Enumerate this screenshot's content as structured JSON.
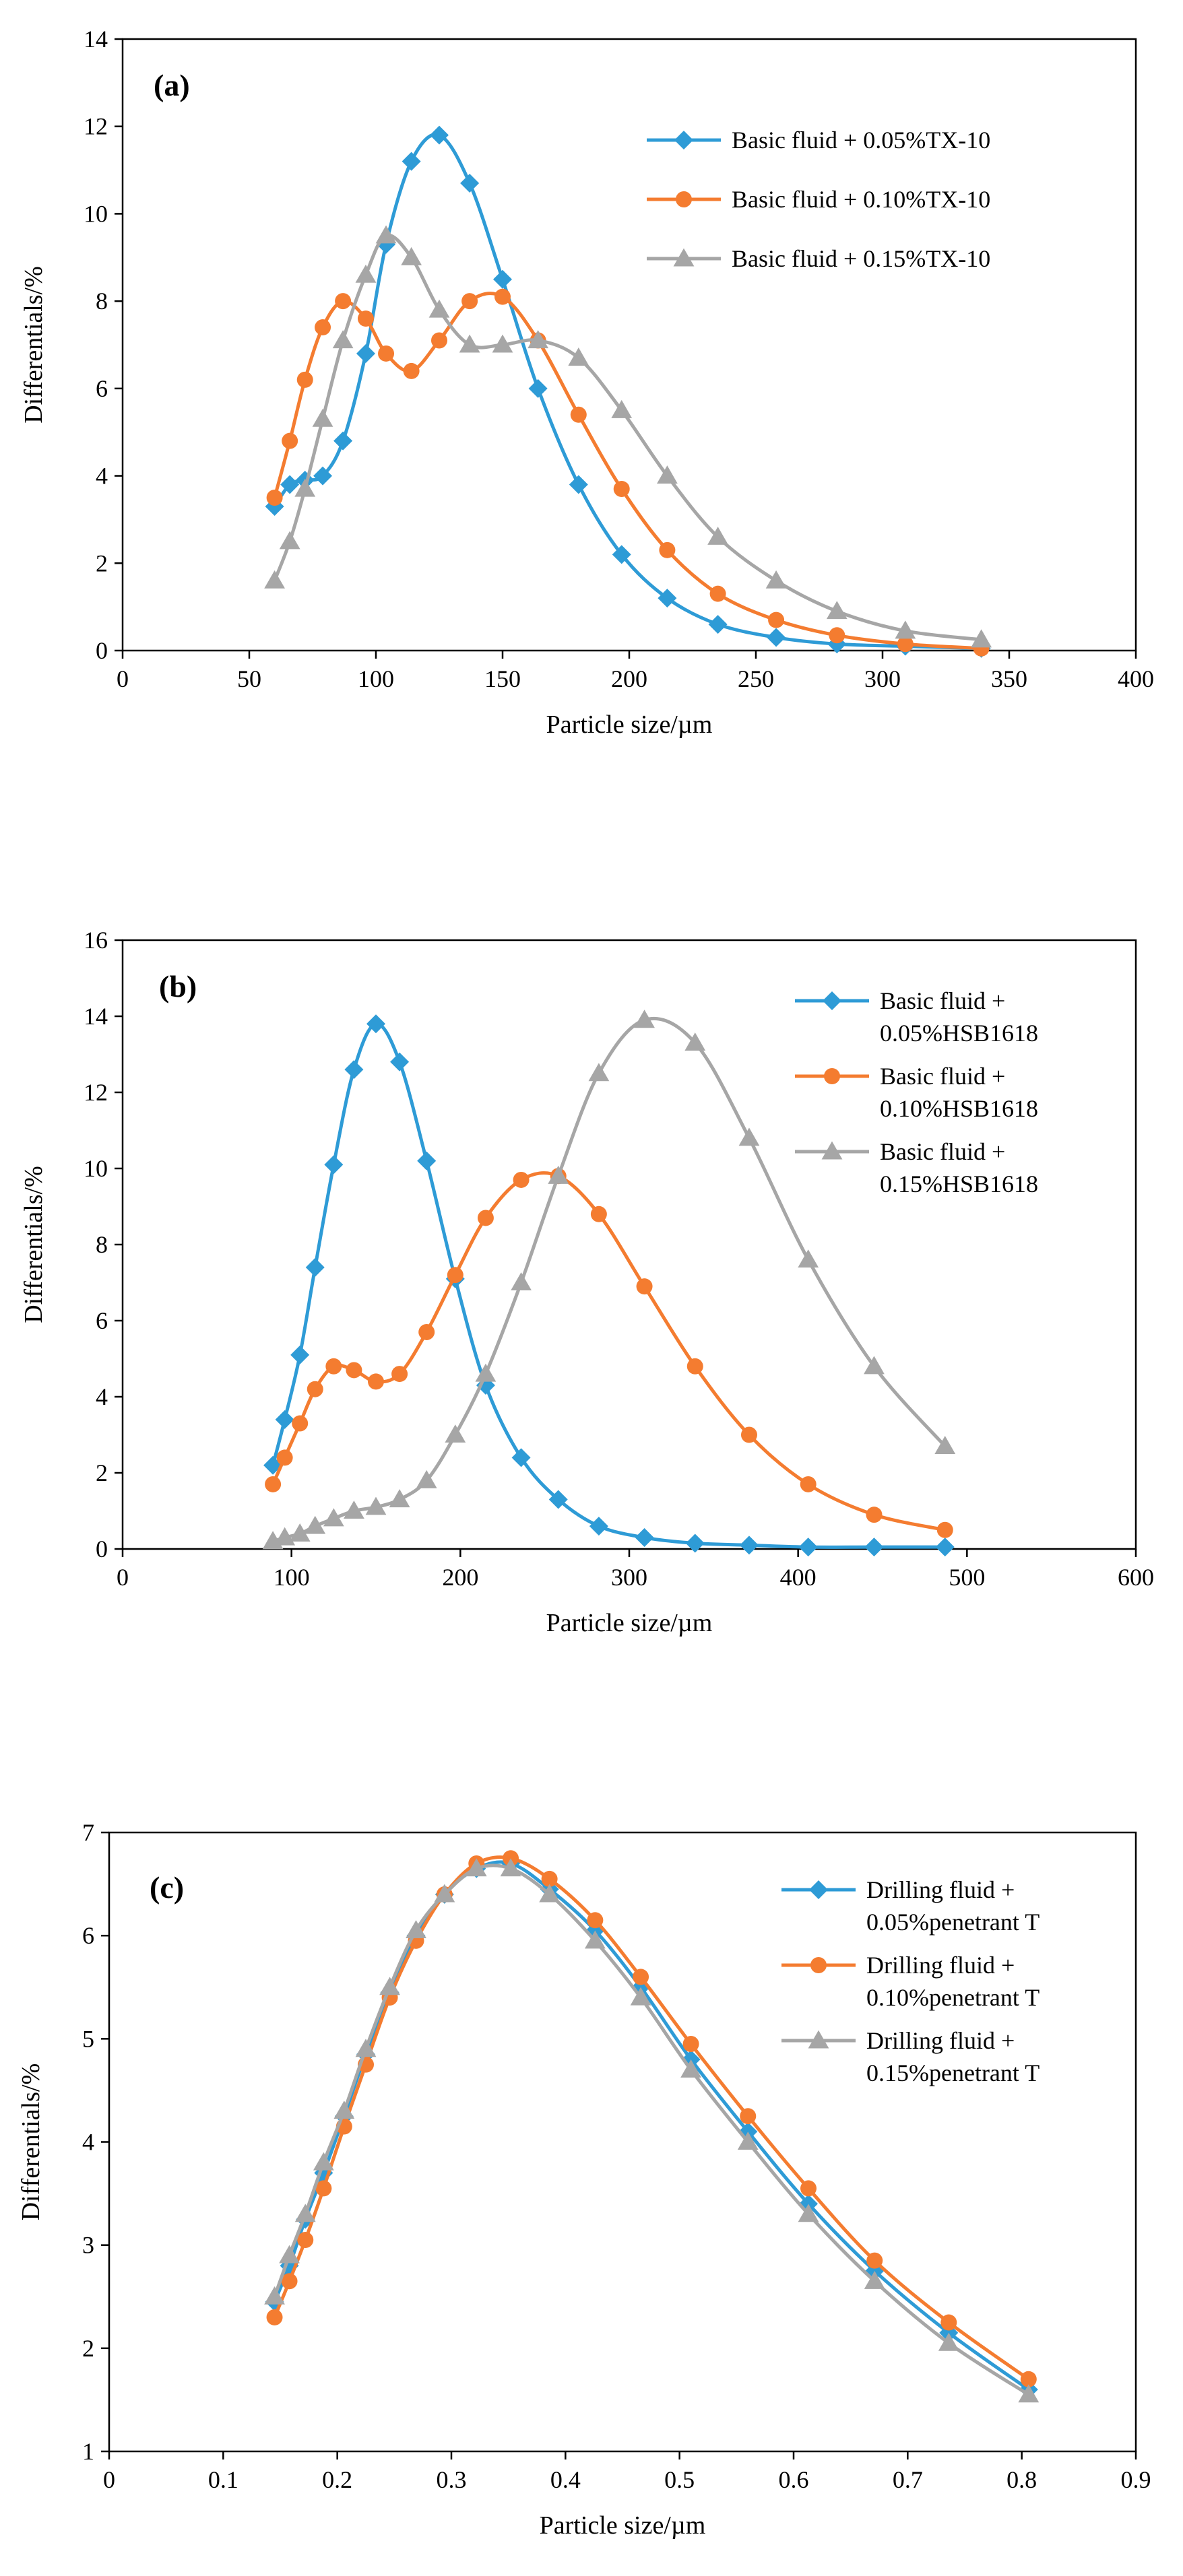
{
  "colors": {
    "blue": "#2E9BD6",
    "orange": "#F47C30",
    "gray": "#A6A6A6"
  },
  "chart_data": [
    {
      "type": "line",
      "panel_label": "(a)",
      "title": "",
      "xlabel": "Particle size/µm",
      "ylabel": "Differentials/%",
      "xlim": [
        0,
        400
      ],
      "ylim": [
        0,
        14
      ],
      "xticks": [
        0,
        50,
        100,
        150,
        200,
        250,
        300,
        350,
        400
      ],
      "yticks": [
        0,
        2,
        4,
        6,
        8,
        10,
        12,
        14
      ],
      "legend_position": "top-right",
      "series": [
        {
          "name": "Basic fluid + 0.05%TX-10",
          "color": "#2E9BD6",
          "marker": "diamond",
          "x": [
            60,
            66,
            72,
            79,
            87,
            96,
            104,
            114,
            125,
            137,
            150,
            164,
            180,
            197,
            215,
            235,
            258,
            282,
            309,
            339
          ],
          "y": [
            3.3,
            3.8,
            3.9,
            4.0,
            4.8,
            6.8,
            9.3,
            11.2,
            11.8,
            10.7,
            8.5,
            6.0,
            3.8,
            2.2,
            1.2,
            0.6,
            0.3,
            0.15,
            0.1,
            0.05
          ]
        },
        {
          "name": "Basic fluid + 0.10%TX-10",
          "color": "#F47C30",
          "marker": "circle",
          "x": [
            60,
            66,
            72,
            79,
            87,
            96,
            104,
            114,
            125,
            137,
            150,
            164,
            180,
            197,
            215,
            235,
            258,
            282,
            309,
            339
          ],
          "y": [
            3.5,
            4.8,
            6.2,
            7.4,
            8.0,
            7.6,
            6.8,
            6.4,
            7.1,
            8.0,
            8.1,
            7.1,
            5.4,
            3.7,
            2.3,
            1.3,
            0.7,
            0.35,
            0.15,
            0.05
          ]
        },
        {
          "name": "Basic fluid + 0.15%TX-10",
          "color": "#A6A6A6",
          "marker": "triangle",
          "x": [
            60,
            66,
            72,
            79,
            87,
            96,
            104,
            114,
            125,
            137,
            150,
            164,
            180,
            197,
            215,
            235,
            258,
            282,
            309,
            339
          ],
          "y": [
            1.6,
            2.5,
            3.7,
            5.3,
            7.1,
            8.6,
            9.5,
            9.0,
            7.8,
            7.0,
            7.0,
            7.1,
            6.7,
            5.5,
            4.0,
            2.6,
            1.6,
            0.9,
            0.45,
            0.25
          ]
        }
      ]
    },
    {
      "type": "line",
      "panel_label": "(b)",
      "title": "",
      "xlabel": "Particle size/µm",
      "ylabel": "Differentials/%",
      "xlim": [
        0,
        600
      ],
      "ylim": [
        0,
        16
      ],
      "xticks": [
        0,
        100,
        200,
        300,
        400,
        500,
        600
      ],
      "yticks": [
        0,
        2,
        4,
        6,
        8,
        10,
        12,
        14,
        16
      ],
      "legend_position": "top-right",
      "series": [
        {
          "name": "Basic fluid + 0.05%HSB1618",
          "legend_lines": [
            "Basic fluid +",
            "0.05%HSB1618"
          ],
          "color": "#2E9BD6",
          "marker": "diamond",
          "x": [
            89,
            96,
            105,
            114,
            125,
            137,
            150,
            164,
            180,
            197,
            215,
            236,
            258,
            282,
            309,
            339,
            371,
            406,
            445,
            487
          ],
          "y": [
            2.2,
            3.4,
            5.1,
            7.4,
            10.1,
            12.6,
            13.8,
            12.8,
            10.2,
            7.1,
            4.3,
            2.4,
            1.3,
            0.6,
            0.3,
            0.15,
            0.1,
            0.05,
            0.05,
            0.05
          ]
        },
        {
          "name": "Basic fluid + 0.10%HSB1618",
          "legend_lines": [
            "Basic fluid +",
            "0.10%HSB1618"
          ],
          "color": "#F47C30",
          "marker": "circle",
          "x": [
            89,
            96,
            105,
            114,
            125,
            137,
            150,
            164,
            180,
            197,
            215,
            236,
            258,
            282,
            309,
            339,
            371,
            406,
            445,
            487
          ],
          "y": [
            1.7,
            2.4,
            3.3,
            4.2,
            4.8,
            4.7,
            4.4,
            4.6,
            5.7,
            7.2,
            8.7,
            9.7,
            9.8,
            8.8,
            6.9,
            4.8,
            3.0,
            1.7,
            0.9,
            0.5
          ]
        },
        {
          "name": "Basic fluid + 0.15%HSB1618",
          "legend_lines": [
            "Basic fluid +",
            "0.15%HSB1618"
          ],
          "color": "#A6A6A6",
          "marker": "triangle",
          "x": [
            89,
            96,
            105,
            114,
            125,
            137,
            150,
            164,
            180,
            197,
            215,
            236,
            258,
            282,
            309,
            339,
            371,
            406,
            445,
            487
          ],
          "y": [
            0.2,
            0.3,
            0.4,
            0.6,
            0.8,
            1.0,
            1.1,
            1.3,
            1.8,
            3.0,
            4.6,
            7.0,
            9.8,
            12.5,
            13.9,
            13.3,
            10.8,
            7.6,
            4.8,
            2.7
          ]
        }
      ]
    },
    {
      "type": "line",
      "panel_label": "(c)",
      "title": "",
      "xlabel": "Particle size/µm",
      "ylabel": "Differentials/%",
      "xlim": [
        0,
        0.9
      ],
      "ylim": [
        1,
        7
      ],
      "xticks": [
        0,
        0.1,
        0.2,
        0.3,
        0.4,
        0.5,
        0.6,
        0.7,
        0.8,
        0.9
      ],
      "yticks": [
        1,
        2,
        3,
        4,
        5,
        6,
        7
      ],
      "legend_position": "top-right",
      "series": [
        {
          "name": "Drilling fluid + 0.05%penetrant T",
          "legend_lines": [
            "Drilling fluid +",
            "0.05%penetrant T"
          ],
          "color": "#2E9BD6",
          "marker": "diamond",
          "x": [
            0.145,
            0.158,
            0.172,
            0.188,
            0.206,
            0.225,
            0.246,
            0.269,
            0.294,
            0.322,
            0.352,
            0.386,
            0.426,
            0.466,
            0.51,
            0.56,
            0.613,
            0.671,
            0.736,
            0.806
          ],
          "y": [
            2.45,
            2.8,
            3.25,
            3.7,
            4.25,
            4.85,
            5.45,
            6.0,
            6.4,
            6.65,
            6.7,
            6.45,
            6.05,
            5.5,
            4.8,
            4.1,
            3.4,
            2.75,
            2.15,
            1.6
          ]
        },
        {
          "name": "Drilling fluid + 0.10%penetrant T",
          "legend_lines": [
            "Drilling fluid +",
            "0.10%penetrant T"
          ],
          "color": "#F47C30",
          "marker": "circle",
          "x": [
            0.145,
            0.158,
            0.172,
            0.188,
            0.206,
            0.225,
            0.246,
            0.269,
            0.294,
            0.322,
            0.352,
            0.386,
            0.426,
            0.466,
            0.51,
            0.56,
            0.613,
            0.671,
            0.736,
            0.806
          ],
          "y": [
            2.3,
            2.65,
            3.05,
            3.55,
            4.15,
            4.75,
            5.4,
            5.95,
            6.4,
            6.7,
            6.75,
            6.55,
            6.15,
            5.6,
            4.95,
            4.25,
            3.55,
            2.85,
            2.25,
            1.7
          ]
        },
        {
          "name": "Drilling fluid + 0.15%penetrant T",
          "legend_lines": [
            "Drilling fluid +",
            "0.15%penetrant T"
          ],
          "color": "#A6A6A6",
          "marker": "triangle",
          "x": [
            0.145,
            0.158,
            0.172,
            0.188,
            0.206,
            0.225,
            0.246,
            0.269,
            0.294,
            0.322,
            0.352,
            0.386,
            0.426,
            0.466,
            0.51,
            0.56,
            0.613,
            0.671,
            0.736,
            0.806
          ],
          "y": [
            2.5,
            2.9,
            3.3,
            3.8,
            4.3,
            4.9,
            5.5,
            6.05,
            6.4,
            6.65,
            6.65,
            6.4,
            5.95,
            5.4,
            4.7,
            4.0,
            3.3,
            2.65,
            2.05,
            1.55
          ]
        }
      ]
    }
  ]
}
